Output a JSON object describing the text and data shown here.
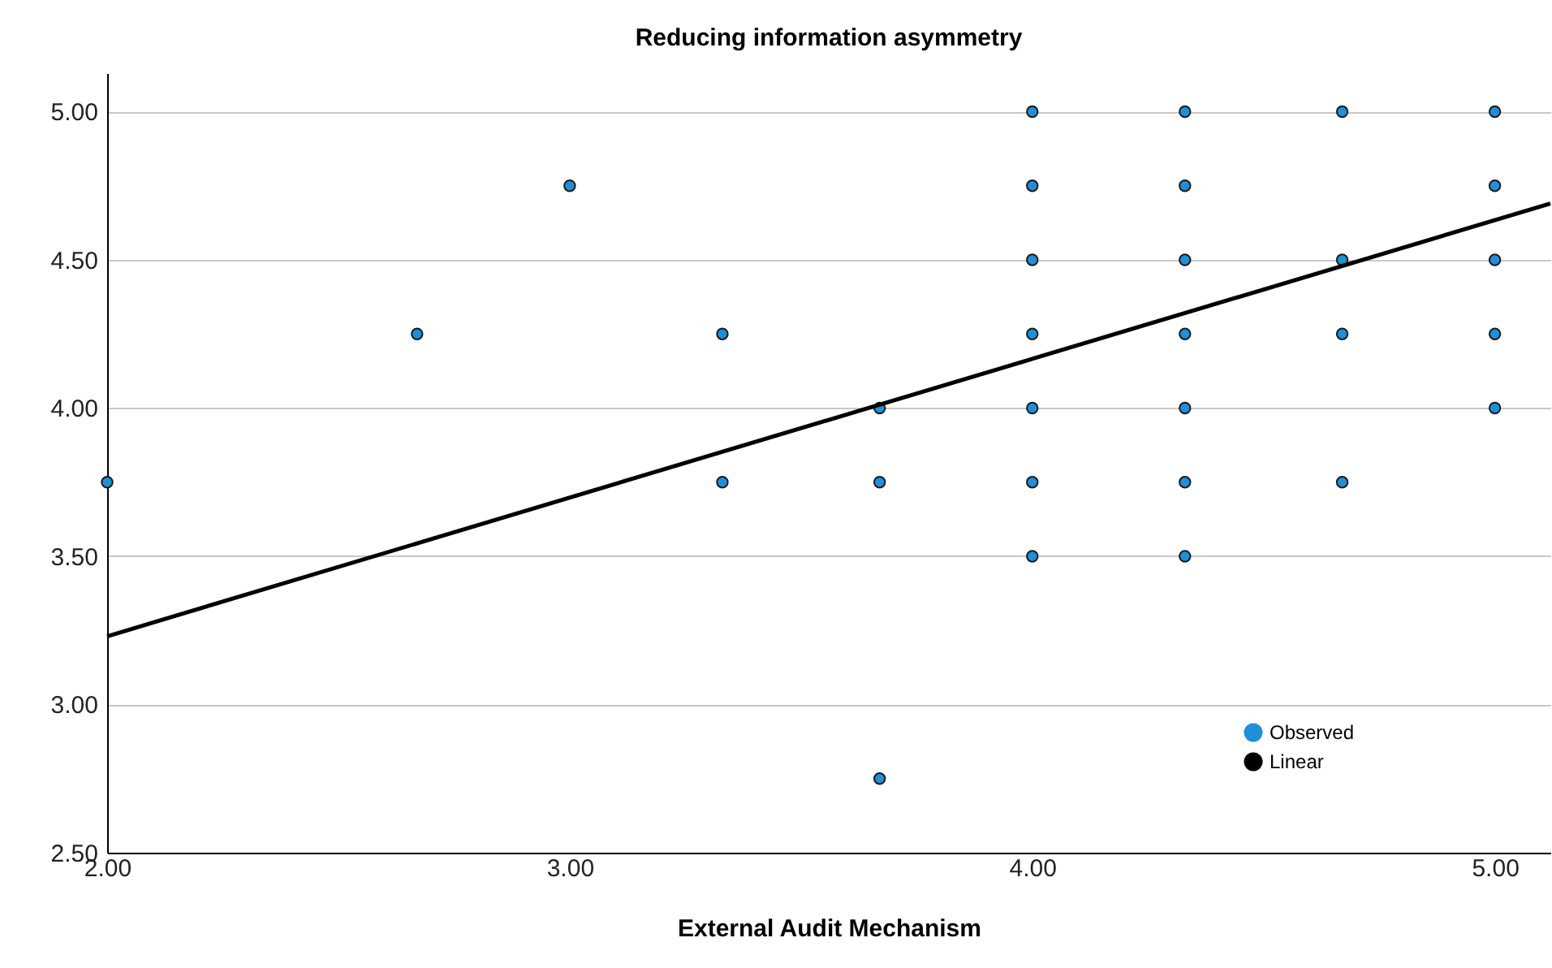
{
  "chart_data": {
    "type": "scatter",
    "title": "Reducing information asymmetry",
    "xlabel": "External Audit Mechanism",
    "xlim": [
      2,
      5.12
    ],
    "ylim": [
      2.5,
      5.13
    ],
    "xticks": [
      {
        "value": 2,
        "label": "2.00"
      },
      {
        "value": 3,
        "label": "3.00"
      },
      {
        "value": 4,
        "label": "4.00"
      },
      {
        "value": 5,
        "label": "5.00"
      }
    ],
    "yticks": [
      {
        "value": 2.5,
        "label": "2.50"
      },
      {
        "value": 3,
        "label": "3.00"
      },
      {
        "value": 3.5,
        "label": "3.50"
      },
      {
        "value": 4,
        "label": "4.00"
      },
      {
        "value": 4.5,
        "label": "4.50"
      },
      {
        "value": 5,
        "label": "5.00"
      }
    ],
    "grid": "y",
    "legend": "bottom right",
    "line_style": "solid",
    "series": [
      {
        "name": "Observed",
        "marker": "circle",
        "color": "#1f8fd8",
        "x": [
          2,
          2.67,
          3,
          3.33,
          3.33,
          3.67,
          3.67,
          3.67,
          4,
          4,
          4,
          4,
          4,
          4,
          4,
          4.33,
          4.33,
          4.33,
          4.33,
          4.33,
          4.33,
          4.33,
          4.67,
          4.67,
          4.67,
          4.67,
          5,
          5,
          5,
          5,
          5
        ],
        "values": [
          3.75,
          4.25,
          4.75,
          4.25,
          3.75,
          4,
          3.75,
          2.75,
          5,
          4.75,
          4.5,
          4.25,
          4,
          3.75,
          3.5,
          5,
          4.75,
          4.5,
          4.25,
          4,
          3.75,
          3.5,
          5,
          4.5,
          4.25,
          3.75,
          5,
          4.75,
          4.5,
          4.25,
          4
        ]
      },
      {
        "name": "Linear",
        "type": "line",
        "marker": "none",
        "color": "#000000",
        "x": [
          2,
          5.12
        ],
        "values": [
          3.23,
          4.69
        ]
      }
    ]
  }
}
